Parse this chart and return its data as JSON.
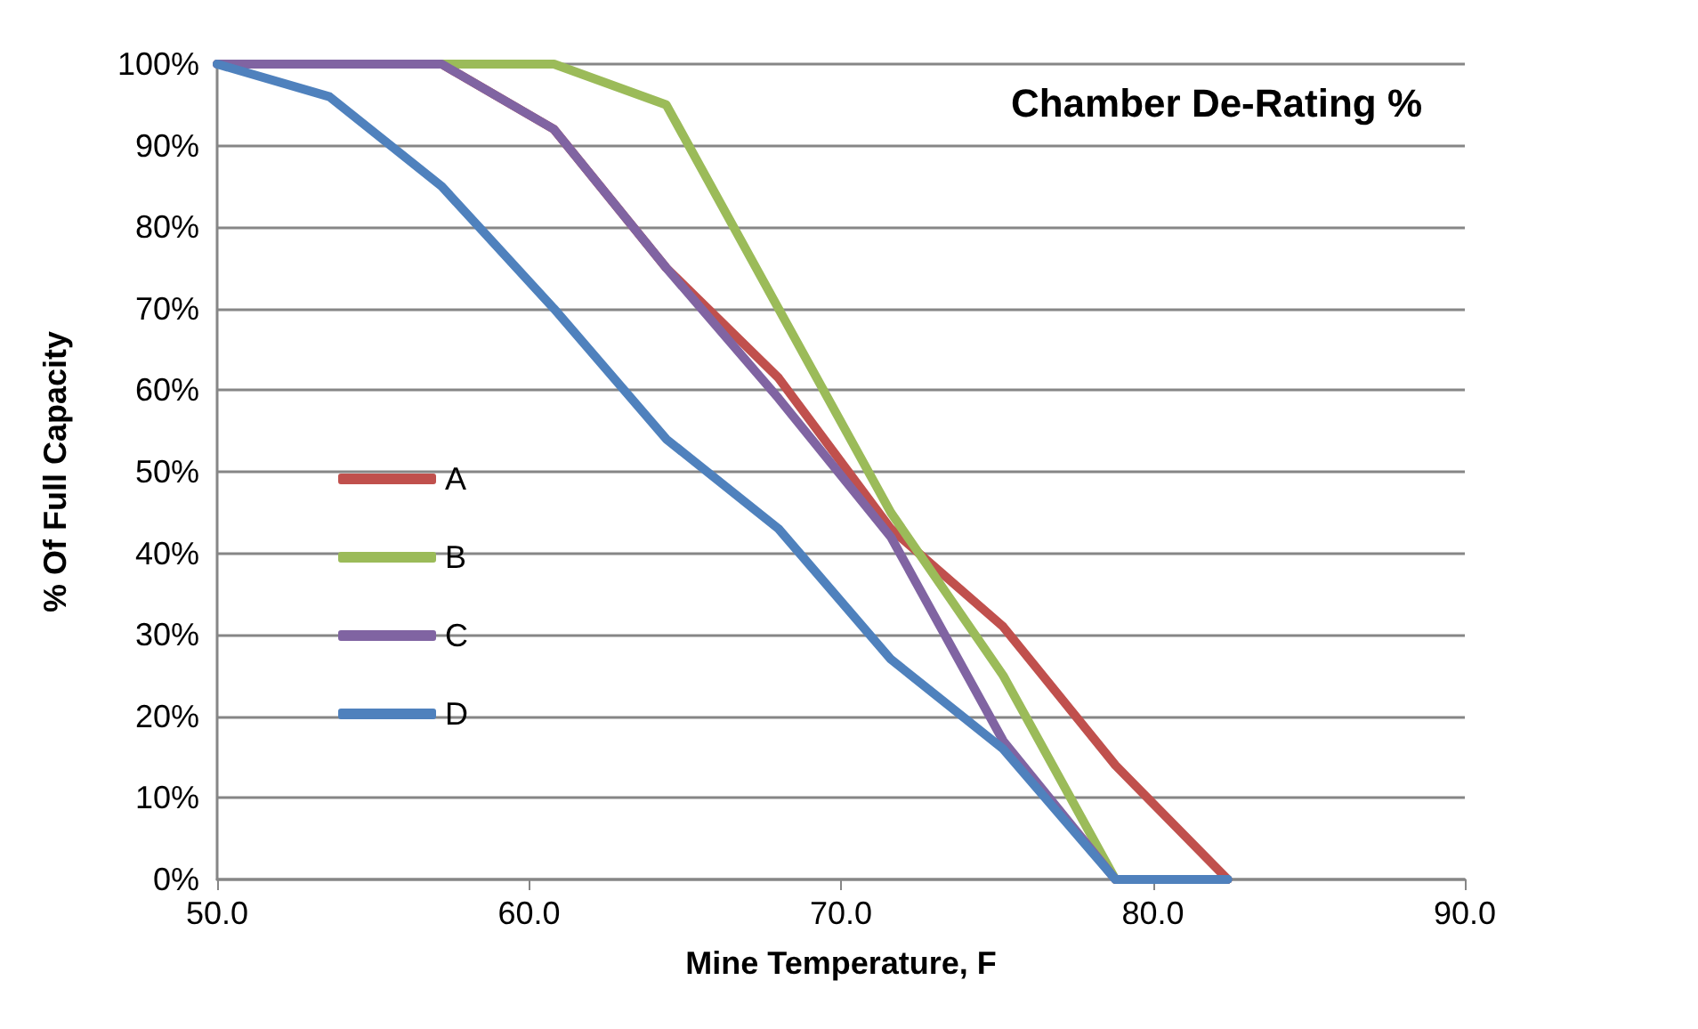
{
  "chart_data": {
    "type": "line",
    "title": "Chamber De-Rating %",
    "xlabel": "Mine Temperature, F",
    "ylabel": "% Of Full Capacity",
    "x": [
      50,
      53.6,
      57.2,
      60.8,
      64.4,
      68,
      71.6,
      75.2,
      78.8,
      82.4
    ],
    "series": [
      {
        "name": "A",
        "color": "#c0504d",
        "values": [
          100,
          100,
          100,
          92,
          75,
          61.5,
          43,
          31,
          14,
          0
        ]
      },
      {
        "name": "B",
        "color": "#9bbb59",
        "values": [
          null,
          null,
          100,
          100,
          95,
          70,
          45,
          25,
          0,
          0
        ]
      },
      {
        "name": "C",
        "color": "#8064a2",
        "values": [
          100,
          100,
          100,
          92,
          75,
          59,
          42,
          17,
          0,
          0
        ]
      },
      {
        "name": "D",
        "color": "#4f81bd",
        "values": [
          100,
          96,
          85,
          70,
          54,
          43,
          27,
          16,
          0,
          0
        ]
      }
    ],
    "xlim": [
      50,
      90
    ],
    "xticks": [
      {
        "value": 50,
        "label": "50.0"
      },
      {
        "value": 60,
        "label": "60.0"
      },
      {
        "value": 70,
        "label": "70.0"
      },
      {
        "value": 80,
        "label": "80.0"
      },
      {
        "value": 90,
        "label": "90.0"
      }
    ],
    "ylim": [
      0,
      100
    ],
    "yticks": [
      {
        "value": 0,
        "label": "0%"
      },
      {
        "value": 10,
        "label": "10%"
      },
      {
        "value": 20,
        "label": "20%"
      },
      {
        "value": 30,
        "label": "30%"
      },
      {
        "value": 40,
        "label": "40%"
      },
      {
        "value": 50,
        "label": "50%"
      },
      {
        "value": 60,
        "label": "60%"
      },
      {
        "value": 70,
        "label": "70%"
      },
      {
        "value": 80,
        "label": "80%"
      },
      {
        "value": 90,
        "label": "90%"
      },
      {
        "value": 100,
        "label": "100%"
      }
    ],
    "grid": "y",
    "legend": "left",
    "marker": "none",
    "line_style": "solid"
  }
}
